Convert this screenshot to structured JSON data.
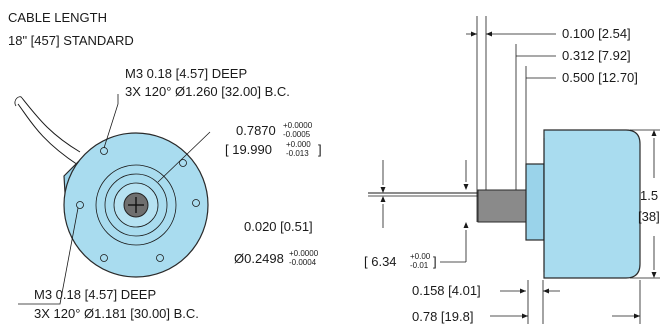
{
  "cable": {
    "title": "CABLE LENGTH",
    "standard": "18\" [457] STANDARD"
  },
  "front": {
    "top_holes_line1": "M3 0.18 [4.57] DEEP",
    "top_holes_line2": "3X 120° Ø1.260 [32.00] B.C.",
    "bottom_holes_line1": "M3 0.18 [4.57] DEEP",
    "bottom_holes_line2": "3X 120° Ø1.181 [30.00] B.C.",
    "bore_main": "0.7870",
    "bore_tol_upper": "+0.0000",
    "bore_tol_lower": "-0.0005",
    "bore_metric_open": "[ 19.990",
    "bore_metric_tol_upper": "+0.000",
    "bore_metric_tol_lower": "-0.013",
    "bore_metric_close": "]",
    "dim_020": "0.020 [0.51]",
    "shaft_main": "Ø0.2498",
    "shaft_tol_upper": "+0.0000",
    "shaft_tol_lower": "-0.0004"
  },
  "side": {
    "dim_0100": "0.100 [2.54]",
    "dim_0312": "0.312 [7.92]",
    "dim_0500": "0.500 [12.70]",
    "shaft_metric_open": "[ 6.34",
    "shaft_metric_tol_upper": "+0.00",
    "shaft_metric_tol_lower": "-0.01",
    "shaft_metric_close": "]",
    "dim_0158": "0.158 [4.01]",
    "dim_078": "0.78 [19.8]",
    "height_in": "1.5",
    "height_mm": "[38]"
  },
  "colors": {
    "body": "#a9dcef",
    "line": "#1a1a1a"
  }
}
